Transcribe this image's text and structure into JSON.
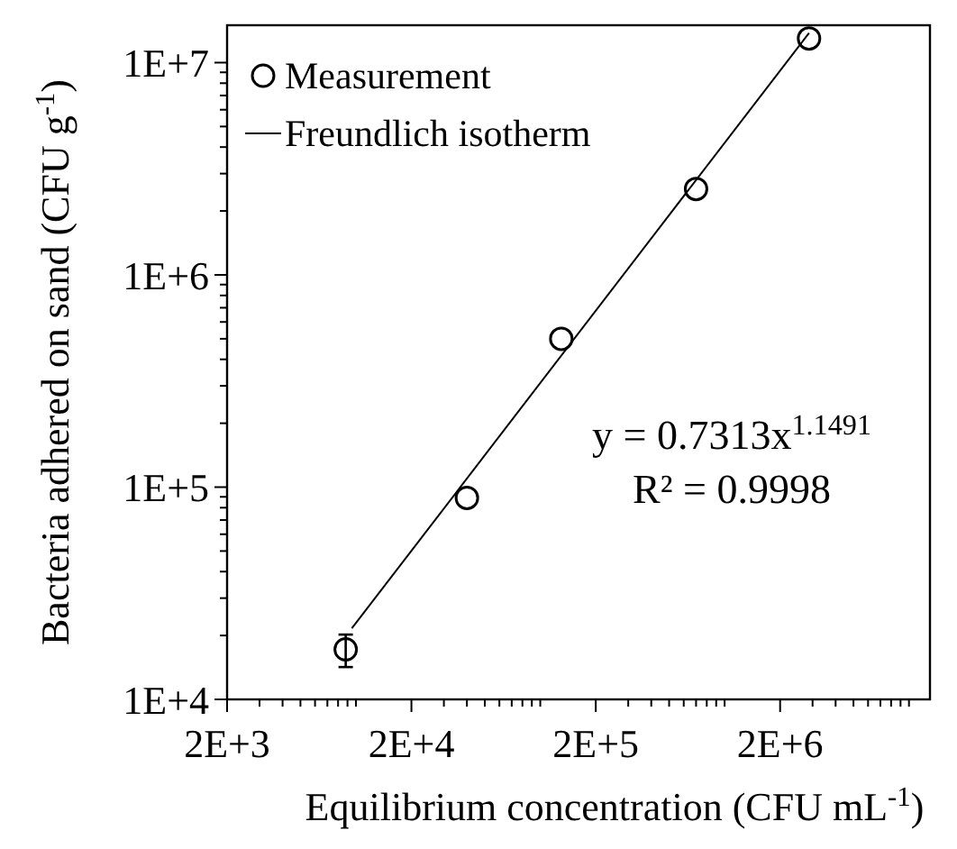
{
  "chart_data": {
    "type": "scatter",
    "xlabel": "Equilibrium concentration (CFU mL$^{-1}$)",
    "ylabel": "Bacteria adhered on sand (CFU g$^{-1}$)",
    "log": "xy",
    "grid": false,
    "legend": "top left",
    "xlim": [
      2000,
      13000000
    ],
    "ylim": [
      10000,
      15000000
    ],
    "xticks": [
      {
        "value": 2000,
        "label": "2E+3"
      },
      {
        "value": 3000,
        "label": null
      },
      {
        "value": 4000,
        "label": null
      },
      {
        "value": 5000,
        "label": null
      },
      {
        "value": 6000,
        "label": null
      },
      {
        "value": 7000,
        "label": null
      },
      {
        "value": 8000,
        "label": null
      },
      {
        "value": 9000,
        "label": null
      },
      {
        "value": 10000,
        "label": null
      },
      {
        "value": 20000,
        "label": "2E+4"
      },
      {
        "value": 30000,
        "label": null
      },
      {
        "value": 40000,
        "label": null
      },
      {
        "value": 50000,
        "label": null
      },
      {
        "value": 60000,
        "label": null
      },
      {
        "value": 70000,
        "label": null
      },
      {
        "value": 80000,
        "label": null
      },
      {
        "value": 90000,
        "label": null
      },
      {
        "value": 100000,
        "label": null
      },
      {
        "value": 200000,
        "label": "2E+5"
      },
      {
        "value": 300000,
        "label": null
      },
      {
        "value": 400000,
        "label": null
      },
      {
        "value": 500000,
        "label": null
      },
      {
        "value": 600000,
        "label": null
      },
      {
        "value": 700000,
        "label": null
      },
      {
        "value": 800000,
        "label": null
      },
      {
        "value": 900000,
        "label": null
      },
      {
        "value": 1000000,
        "label": null
      },
      {
        "value": 2000000,
        "label": "2E+6"
      },
      {
        "value": 3000000,
        "label": null
      },
      {
        "value": 4000000,
        "label": null
      },
      {
        "value": 5000000,
        "label": null
      },
      {
        "value": 6000000,
        "label": null
      },
      {
        "value": 7000000,
        "label": null
      },
      {
        "value": 8000000,
        "label": null
      },
      {
        "value": 9000000,
        "label": null
      },
      {
        "value": 10000000,
        "label": null
      }
    ],
    "yticks": [
      {
        "value": 10000,
        "label": "1E+4"
      },
      {
        "value": 20000,
        "label": null
      },
      {
        "value": 30000,
        "label": null
      },
      {
        "value": 40000,
        "label": null
      },
      {
        "value": 50000,
        "label": null
      },
      {
        "value": 60000,
        "label": null
      },
      {
        "value": 70000,
        "label": null
      },
      {
        "value": 80000,
        "label": null
      },
      {
        "value": 90000,
        "label": null
      },
      {
        "value": 100000,
        "label": "1E+5"
      },
      {
        "value": 200000,
        "label": null
      },
      {
        "value": 300000,
        "label": null
      },
      {
        "value": 400000,
        "label": null
      },
      {
        "value": 500000,
        "label": null
      },
      {
        "value": 600000,
        "label": null
      },
      {
        "value": 700000,
        "label": null
      },
      {
        "value": 800000,
        "label": null
      },
      {
        "value": 900000,
        "label": null
      },
      {
        "value": 1000000,
        "label": "1E+6"
      },
      {
        "value": 2000000,
        "label": null
      },
      {
        "value": 3000000,
        "label": null
      },
      {
        "value": 4000000,
        "label": null
      },
      {
        "value": 5000000,
        "label": null
      },
      {
        "value": 6000000,
        "label": null
      },
      {
        "value": 7000000,
        "label": null
      },
      {
        "value": 8000000,
        "label": null
      },
      {
        "value": 9000000,
        "label": null
      },
      {
        "value": 10000000,
        "label": "1E+7"
      }
    ],
    "series": [
      {
        "name": "Measurement",
        "marker": "circle",
        "color": "#000000",
        "x": [
          8800,
          40000,
          130000,
          700000,
          2870000
        ],
        "values": [
          17200,
          89000,
          500000,
          2540000,
          13000000
        ],
        "errors": [
          3000,
          null,
          null,
          null,
          null
        ]
      },
      {
        "name": "Freundlich isotherm",
        "type": "line",
        "marker": "none",
        "line_style": "solid",
        "color": "#000000",
        "x": [
          9500,
          2870000
        ],
        "values": [
          21600,
          13800000
        ]
      }
    ],
    "annotations": [
      "y = 0.7313x$^{1.1491}$",
      "R² = 0.9998"
    ]
  }
}
